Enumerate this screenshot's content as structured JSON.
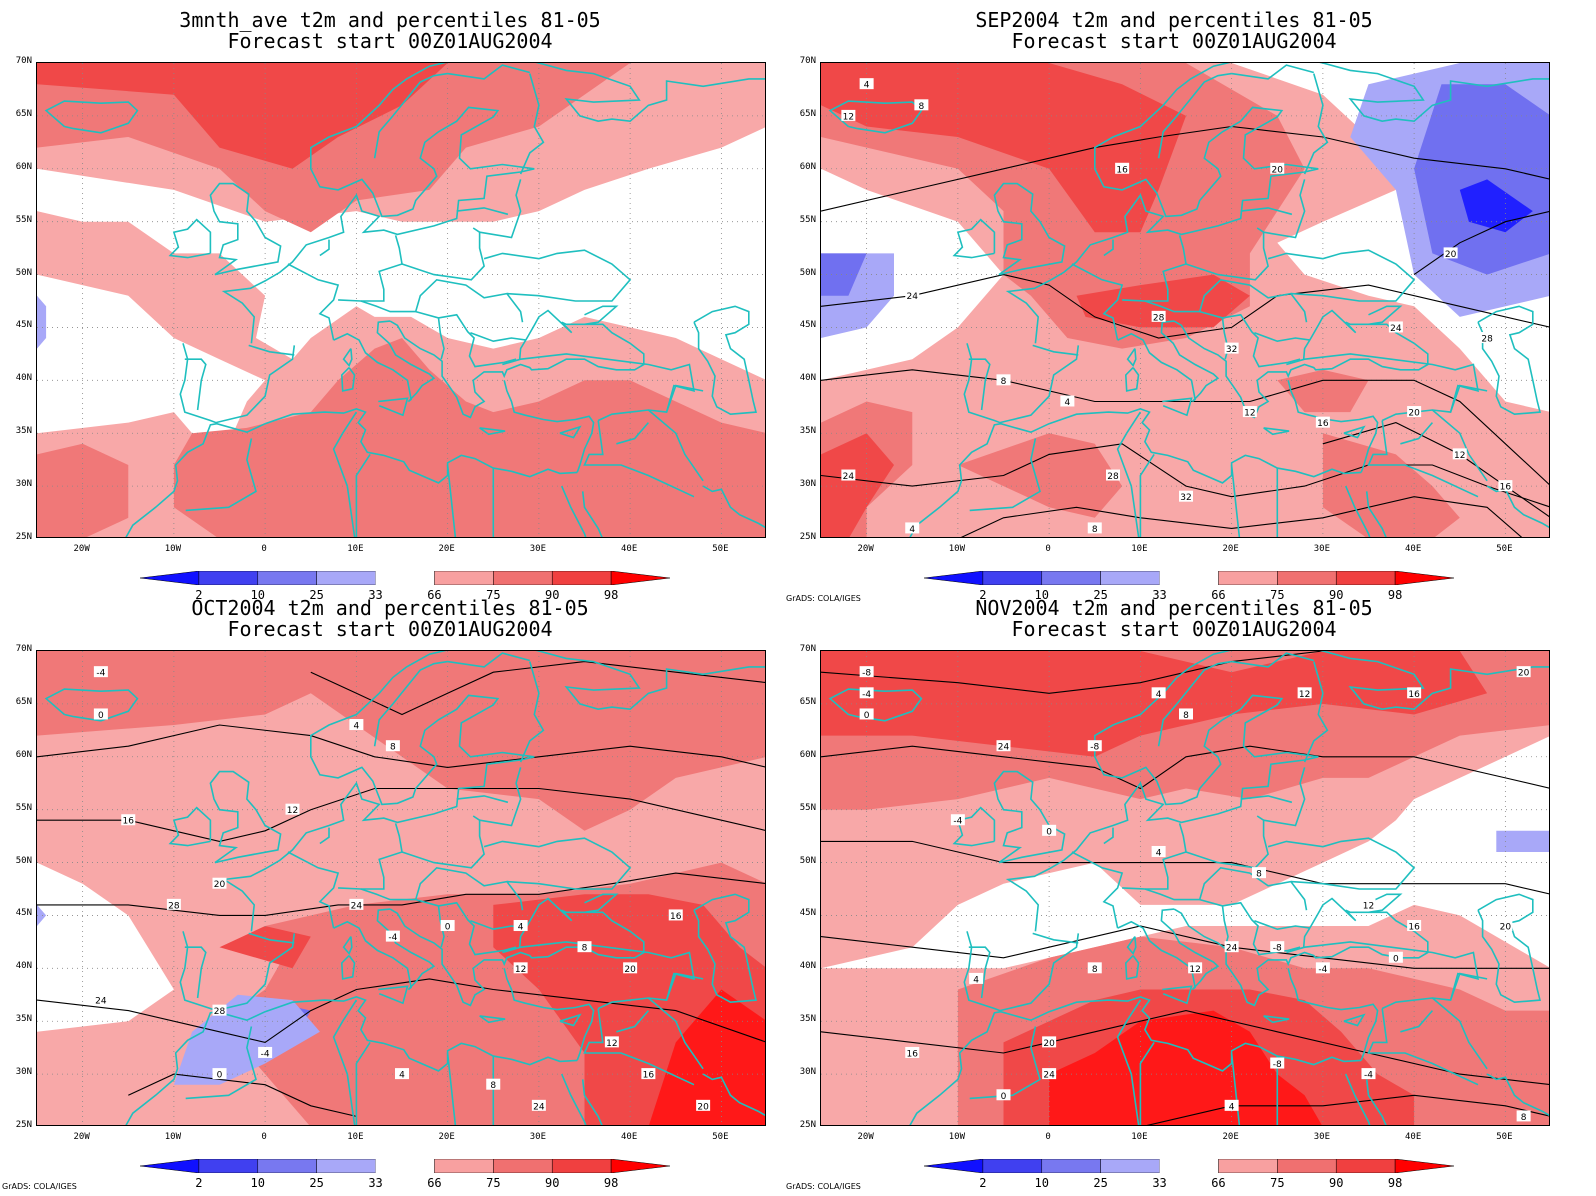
{
  "panels": [
    {
      "title1": "3mnth_ave t2m and percentiles 81-05",
      "title2": "Forecast start 00Z01AUG2004",
      "credit": ""
    },
    {
      "title1": "SEP2004 t2m and percentiles 81-05",
      "title2": "Forecast start 00Z01AUG2004",
      "credit": "GrADS: COLA/IGES"
    },
    {
      "title1": "OCT2004 t2m and percentiles 81-05",
      "title2": "Forecast start 00Z01AUG2004",
      "credit": "GrADS: COLA/IGES"
    },
    {
      "title1": "NOV2004 t2m and percentiles 81-05",
      "title2": "Forecast start 00Z01AUG2004",
      "credit": "GrADS: COLA/IGES"
    }
  ],
  "lat_labels": [
    "70N",
    "65N",
    "60N",
    "55N",
    "50N",
    "45N",
    "40N",
    "35N",
    "30N",
    "25N"
  ],
  "lon_labels": [
    "20W",
    "10W",
    "0",
    "10E",
    "20E",
    "30E",
    "40E",
    "50E"
  ],
  "colorbar": {
    "labels": [
      "2",
      "10",
      "25",
      "33",
      "66",
      "75",
      "90",
      "98"
    ],
    "colors": [
      "#1010ff",
      "#4040f0",
      "#7878f0",
      "#a8a8f8",
      "#ffffff",
      "#f8a0a0",
      "#f07070",
      "#f04040",
      "#ff0000"
    ]
  },
  "colors": {
    "coast": "#1fbfbf",
    "contour": "#000000",
    "warm_light": "#f8a8a8",
    "warm_mid": "#f07878",
    "warm_dark": "#f04848",
    "warm_max": "#ff1818",
    "cold_light": "#a8a8f8",
    "cold_mid": "#7070f0",
    "cold_dark": "#2020ff"
  },
  "contour_labels": [
    [
      "4",
      "8",
      "12",
      "16",
      "20",
      "24",
      "28",
      "32"
    ],
    [
      "-4",
      "0",
      "4",
      "8",
      "12",
      "16",
      "20",
      "24",
      "28"
    ],
    [
      "-8",
      "-4",
      "0",
      "4",
      "8",
      "12",
      "16",
      "20",
      "24"
    ]
  ]
}
